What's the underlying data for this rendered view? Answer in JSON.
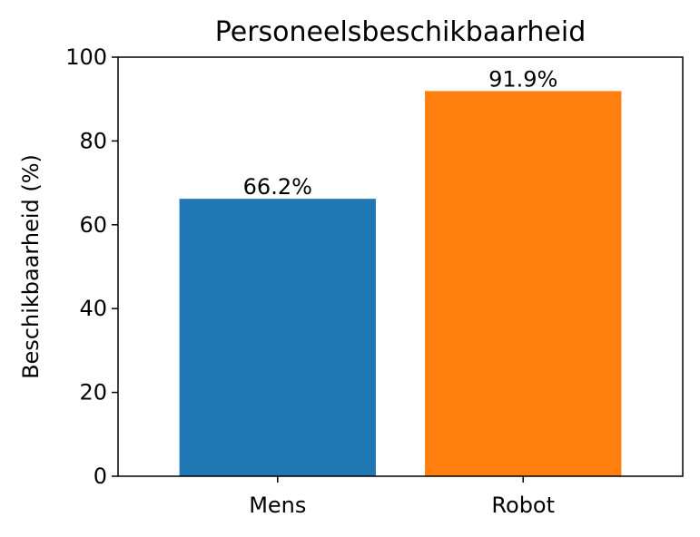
{
  "chart_data": {
    "type": "bar",
    "title": "Personeelsbeschikbaarheid",
    "xlabel": "",
    "ylabel": "Beschikbaarheid (%)",
    "categories": [
      "Mens",
      "Robot"
    ],
    "values": [
      66.2,
      91.9
    ],
    "data_labels": [
      "66.2%",
      "91.9%"
    ],
    "colors": [
      "#1f77b4",
      "#ff7f0e"
    ],
    "ylim": [
      0,
      100
    ],
    "yticks": [
      0,
      20,
      40,
      60,
      80,
      100
    ],
    "grid": false,
    "legend": "none"
  }
}
